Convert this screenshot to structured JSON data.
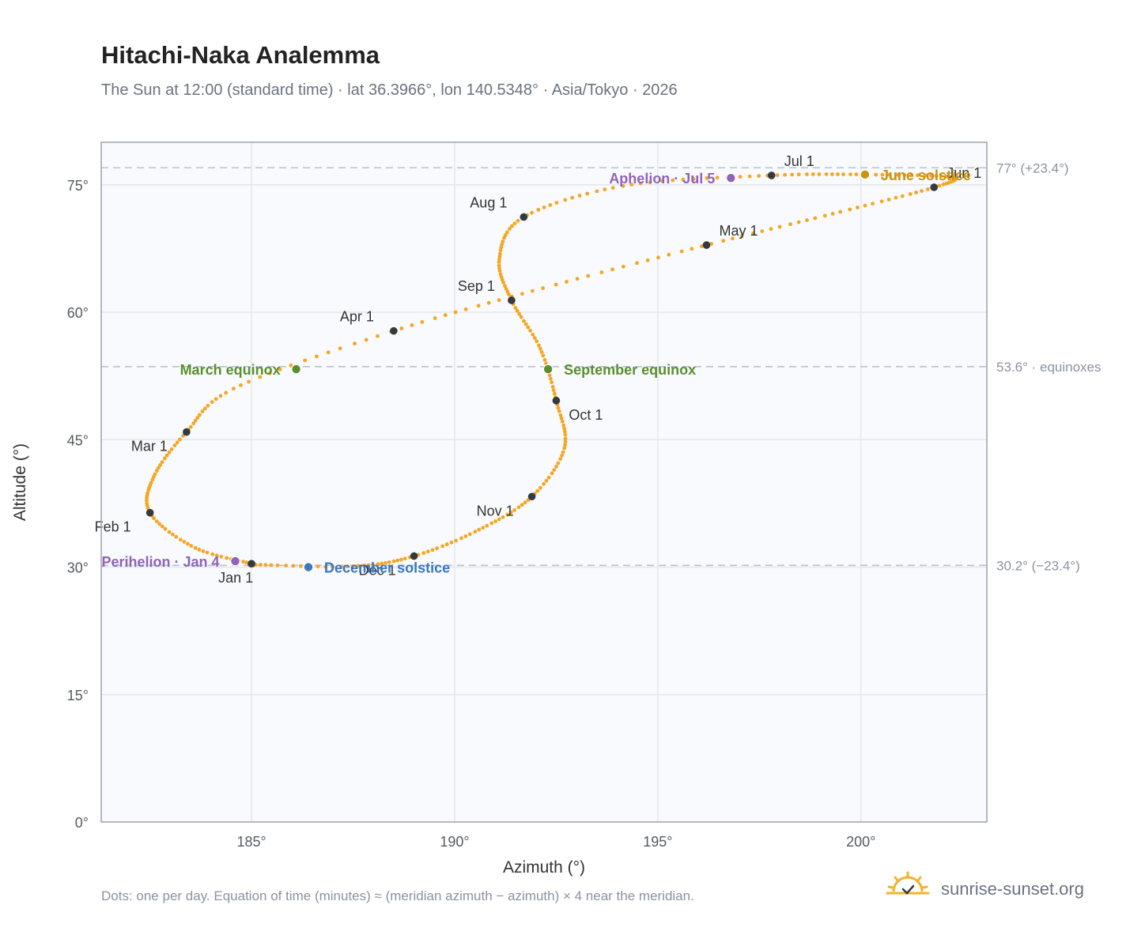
{
  "header": {
    "title": "Hitachi-Naka Analemma",
    "subtitle": "The Sun at 12:00 (standard time) · lat 36.3966°, lon 140.5348° · Asia/Tokyo · 2026"
  },
  "footer": {
    "note": "Dots: one per day. Equation of time (minutes) ≈ (meridian azimuth − azimuth) × 4 near the meridian.",
    "brand": "sunrise-sunset.org"
  },
  "colors": {
    "curve": "#f5a623",
    "month_dot": "#333a40",
    "equinox": "#5a8f2e",
    "june_solstice": "#c9930c",
    "december_solstice": "#3a78c0",
    "apsis": "#8e63b8",
    "plot_bg": "#f8fafd",
    "grid": "#e3e7ec",
    "reference_line": "#b8c2cc",
    "frame": "#9aa3ad",
    "logo": "#f0b429"
  },
  "icons": {
    "brand_logo": "sun-check-icon"
  },
  "chart_data": {
    "type": "scatter",
    "title": "Hitachi-Naka Analemma",
    "subtitle": "The Sun at 12:00 (standard time) · lat 36.3966°, lon 140.5348° · Asia/Tokyo · 2026",
    "xlabel": "Azimuth (°)",
    "ylabel": "Altitude (°)",
    "xlim": [
      181.3,
      203.1
    ],
    "ylim": [
      0,
      80
    ],
    "xticks": [
      185,
      190,
      195,
      200
    ],
    "xtick_labels": [
      "185°",
      "190°",
      "195°",
      "200°"
    ],
    "yticks": [
      0,
      15,
      30,
      45,
      60,
      75
    ],
    "ytick_labels": [
      "0°",
      "15°",
      "30°",
      "45°",
      "60°",
      "75°"
    ],
    "grid": true,
    "series": [
      {
        "points": [
          {
            "date": "Jan 1",
            "az": 185.0,
            "alt": 30.4
          },
          {
            "date": "Jan 15",
            "az": 183.6,
            "alt": 32.3
          },
          {
            "date": "Feb 1",
            "az": 182.5,
            "alt": 36.4
          },
          {
            "date": "Feb 15",
            "az": 182.6,
            "alt": 40.7
          },
          {
            "date": "Mar 1",
            "az": 183.4,
            "alt": 45.9
          },
          {
            "date": "Mar 15",
            "az": 184.6,
            "alt": 51.1
          },
          {
            "date": "Apr 1",
            "az": 188.5,
            "alt": 57.8
          },
          {
            "date": "Apr 15",
            "az": 192.3,
            "alt": 63.0
          },
          {
            "date": "May 1",
            "az": 196.2,
            "alt": 67.9
          },
          {
            "date": "May 15",
            "az": 199.4,
            "alt": 71.7
          },
          {
            "date": "Jun 1",
            "az": 201.8,
            "alt": 74.7
          },
          {
            "date": "Jun 10",
            "az": 202.2,
            "alt": 75.9
          },
          {
            "date": "Jun 21",
            "az": 200.1,
            "alt": 76.2
          },
          {
            "date": "Jul 1",
            "az": 197.8,
            "alt": 76.1
          },
          {
            "date": "Jul 15",
            "az": 194.2,
            "alt": 74.9
          },
          {
            "date": "Aug 1",
            "az": 191.7,
            "alt": 71.2
          },
          {
            "date": "Aug 15",
            "az": 191.1,
            "alt": 66.3
          },
          {
            "date": "Sep 1",
            "az": 191.4,
            "alt": 61.4
          },
          {
            "date": "Sep 15",
            "az": 192.1,
            "alt": 55.8
          },
          {
            "date": "Oct 1",
            "az": 192.5,
            "alt": 49.6
          },
          {
            "date": "Oct 15",
            "az": 192.7,
            "alt": 44.0
          },
          {
            "date": "Nov 1",
            "az": 191.9,
            "alt": 38.3
          },
          {
            "date": "Nov 15",
            "az": 190.6,
            "alt": 34.4
          },
          {
            "date": "Dec 1",
            "az": 189.0,
            "alt": 31.3
          },
          {
            "date": "Dec 15",
            "az": 187.5,
            "alt": 30.1
          },
          {
            "date": "Dec 31",
            "az": 185.1,
            "alt": 30.3
          }
        ]
      }
    ],
    "month_markers": [
      {
        "label": "Jan 1",
        "az": 185.0,
        "alt": 30.4,
        "label_pos": "below"
      },
      {
        "label": "Feb 1",
        "az": 182.5,
        "alt": 36.4,
        "label_pos": "below-left"
      },
      {
        "label": "Mar 1",
        "az": 183.4,
        "alt": 45.9,
        "label_pos": "below-left"
      },
      {
        "label": "Apr 1",
        "az": 188.5,
        "alt": 57.8,
        "label_pos": "above-left"
      },
      {
        "label": "May 1",
        "az": 196.2,
        "alt": 67.9,
        "label_pos": "above-right"
      },
      {
        "label": "Jun 1",
        "az": 201.8,
        "alt": 74.7,
        "label_pos": "above-right"
      },
      {
        "label": "Jul 1",
        "az": 197.8,
        "alt": 76.1,
        "label_pos": "above-right"
      },
      {
        "label": "Aug 1",
        "az": 191.7,
        "alt": 71.2,
        "label_pos": "above-left"
      },
      {
        "label": "Sep 1",
        "az": 191.4,
        "alt": 61.4,
        "label_pos": "above-left"
      },
      {
        "label": "Oct 1",
        "az": 192.5,
        "alt": 49.6,
        "label_pos": "below-right"
      },
      {
        "label": "Nov 1",
        "az": 191.9,
        "alt": 38.3,
        "label_pos": "below-left"
      },
      {
        "label": "Dec 1",
        "az": 189.0,
        "alt": 31.3,
        "label_pos": "below-left"
      }
    ],
    "events": [
      {
        "label": "March equinox",
        "az": 186.1,
        "alt": 53.3,
        "color": "#5a8f2e",
        "label_pos": "left"
      },
      {
        "label": "September equinox",
        "az": 192.3,
        "alt": 53.3,
        "color": "#5a8f2e",
        "label_pos": "right"
      },
      {
        "label": "June solstice",
        "az": 200.1,
        "alt": 76.2,
        "color": "#c9930c",
        "label_pos": "right"
      },
      {
        "label": "December solstice",
        "az": 186.4,
        "alt": 30.0,
        "color": "#3a78c0",
        "label_pos": "right"
      },
      {
        "label": "Aphelion · Jul 5",
        "az": 196.8,
        "alt": 75.8,
        "color": "#8e63b8",
        "label_pos": "left"
      },
      {
        "label": "Perihelion · Jan 4",
        "az": 184.6,
        "alt": 30.7,
        "color": "#8e63b8",
        "label_pos": "left"
      }
    ],
    "reference_lines": [
      {
        "alt": 77.0,
        "label": "77° (+23.4°)"
      },
      {
        "alt": 53.6,
        "label": "53.6° · equinoxes"
      },
      {
        "alt": 30.2,
        "label": "30.2° (−23.4°)"
      }
    ]
  }
}
